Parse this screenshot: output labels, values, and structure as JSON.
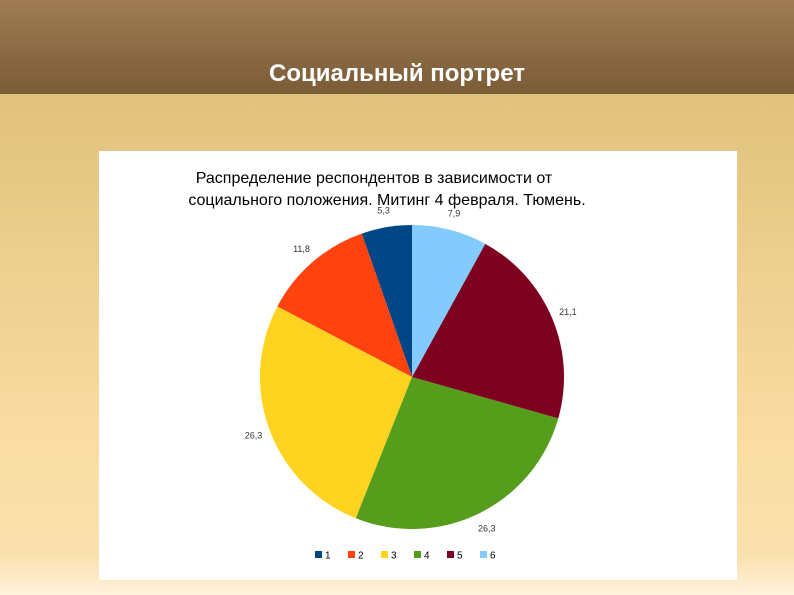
{
  "slide": {
    "title": "Социальный портрет"
  },
  "colors": {
    "header_band": "#8a6a44",
    "background": "#e9cb88"
  },
  "chart_data": {
    "type": "pie",
    "title_lines": [
      "Распределение респондентов в зависимости от",
      "социального положения.  Митинг 4 февраля. Тюмень."
    ],
    "categories": [
      "1",
      "2",
      "3",
      "4",
      "5",
      "6"
    ],
    "values": [
      5.3,
      11.8,
      26.3,
      26.3,
      21.1,
      7.9
    ],
    "labels": [
      "5,3",
      "11,8",
      "26,3",
      "26,3",
      "21,1",
      "7,9"
    ],
    "colors": [
      "#004586",
      "#ff420e",
      "#ffd320",
      "#579d1c",
      "#7e0021",
      "#83caff"
    ],
    "start_angle_deg": 0,
    "direction": "counterclockwise",
    "legend_position": "bottom"
  }
}
